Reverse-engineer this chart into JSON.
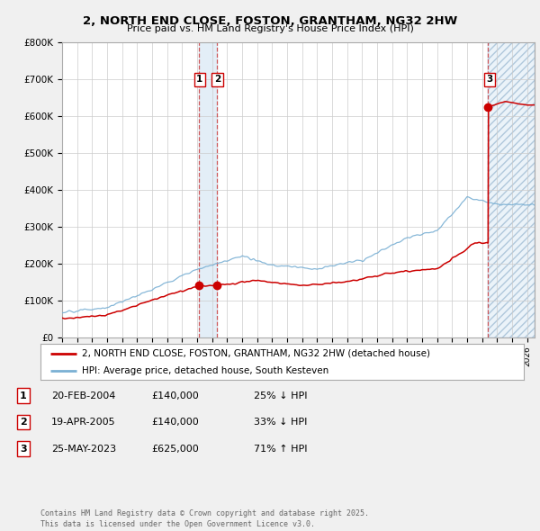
{
  "title": "2, NORTH END CLOSE, FOSTON, GRANTHAM, NG32 2HW",
  "subtitle": "Price paid vs. HM Land Registry's House Price Index (HPI)",
  "ylim": [
    0,
    800000
  ],
  "yticks": [
    0,
    100000,
    200000,
    300000,
    400000,
    500000,
    600000,
    700000,
    800000
  ],
  "ytick_labels": [
    "£0",
    "£100K",
    "£200K",
    "£300K",
    "£400K",
    "£500K",
    "£600K",
    "£700K",
    "£800K"
  ],
  "xlim_start": 1995.0,
  "xlim_end": 2026.5,
  "transaction_color": "#cc0000",
  "hpi_color": "#7ab0d4",
  "background_color": "#f0f0f0",
  "plot_bg_color": "#ffffff",
  "grid_color": "#cccccc",
  "shade_color": "#d8e8f5",
  "hatch_color": "#c8d8e8",
  "transactions": [
    {
      "label": "1",
      "date_num": 2004.12,
      "price": 140000
    },
    {
      "label": "2",
      "date_num": 2005.3,
      "price": 140000
    },
    {
      "label": "3",
      "date_num": 2023.4,
      "price": 625000
    }
  ],
  "shade_regions": [
    {
      "x_start": 2004.12,
      "x_end": 2005.3,
      "hatch": false
    },
    {
      "x_start": 2023.4,
      "x_end": 2026.5,
      "hatch": true
    }
  ],
  "legend_entries": [
    {
      "label": "2, NORTH END CLOSE, FOSTON, GRANTHAM, NG32 2HW (detached house)",
      "color": "#cc0000"
    },
    {
      "label": "HPI: Average price, detached house, South Kesteven",
      "color": "#7ab0d4"
    }
  ],
  "table_rows": [
    {
      "num": "1",
      "date": "20-FEB-2004",
      "price": "£140,000",
      "hpi": "25% ↓ HPI"
    },
    {
      "num": "2",
      "date": "19-APR-2005",
      "price": "£140,000",
      "hpi": "33% ↓ HPI"
    },
    {
      "num": "3",
      "date": "25-MAY-2023",
      "price": "£625,000",
      "hpi": "71% ↑ HPI"
    }
  ],
  "footer": "Contains HM Land Registry data © Crown copyright and database right 2025.\nThis data is licensed under the Open Government Licence v3.0."
}
